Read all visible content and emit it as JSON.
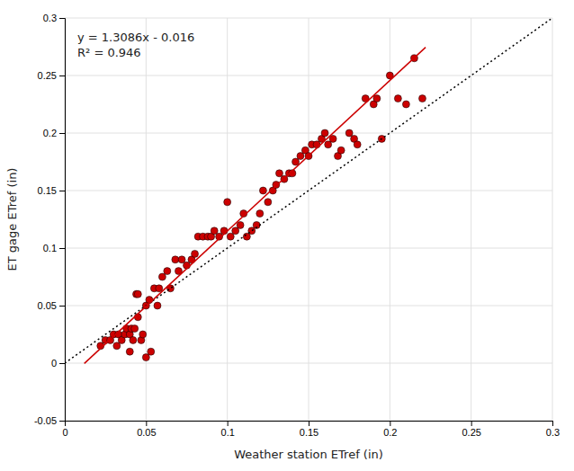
{
  "chart_data": {
    "type": "scatter",
    "xlabel": "Weather station ETref (in)",
    "ylabel": "ET gage ETref (in)",
    "xlim": [
      0,
      0.3
    ],
    "ylim": [
      -0.05,
      0.3
    ],
    "xticks": [
      0,
      0.05,
      0.1,
      0.15,
      0.2,
      0.25,
      0.3
    ],
    "yticks": [
      -0.05,
      0,
      0.05,
      0.1,
      0.15,
      0.2,
      0.25,
      0.3
    ],
    "grid": true,
    "annotations": [
      "y = 1.3086x - 0.016",
      "R² = 0.946"
    ],
    "series": [
      {
        "type": "scatter",
        "color": "#CC0000",
        "marker": "circle",
        "x": [
          0.022,
          0.025,
          0.028,
          0.03,
          0.032,
          0.033,
          0.035,
          0.037,
          0.038,
          0.04,
          0.04,
          0.041,
          0.042,
          0.043,
          0.044,
          0.045,
          0.045,
          0.047,
          0.048,
          0.05,
          0.05,
          0.052,
          0.053,
          0.055,
          0.057,
          0.058,
          0.06,
          0.063,
          0.065,
          0.068,
          0.07,
          0.072,
          0.075,
          0.078,
          0.08,
          0.082,
          0.085,
          0.088,
          0.09,
          0.092,
          0.095,
          0.098,
          0.1,
          0.102,
          0.105,
          0.108,
          0.11,
          0.112,
          0.115,
          0.118,
          0.12,
          0.122,
          0.125,
          0.128,
          0.13,
          0.132,
          0.135,
          0.138,
          0.14,
          0.142,
          0.145,
          0.148,
          0.15,
          0.152,
          0.155,
          0.158,
          0.16,
          0.162,
          0.165,
          0.168,
          0.17,
          0.175,
          0.178,
          0.18,
          0.185,
          0.19,
          0.192,
          0.195,
          0.2,
          0.205,
          0.21,
          0.215,
          0.22
        ],
        "values": [
          0.015,
          0.02,
          0.02,
          0.025,
          0.015,
          0.025,
          0.02,
          0.025,
          0.03,
          0.01,
          0.025,
          0.03,
          0.02,
          0.03,
          0.06,
          0.04,
          0.06,
          0.02,
          0.025,
          0.05,
          0.005,
          0.055,
          0.01,
          0.065,
          0.05,
          0.065,
          0.075,
          0.08,
          0.065,
          0.09,
          0.08,
          0.09,
          0.085,
          0.09,
          0.095,
          0.11,
          0.11,
          0.11,
          0.11,
          0.115,
          0.11,
          0.115,
          0.14,
          0.11,
          0.115,
          0.12,
          0.13,
          0.11,
          0.115,
          0.12,
          0.13,
          0.15,
          0.14,
          0.15,
          0.155,
          0.165,
          0.16,
          0.165,
          0.165,
          0.175,
          0.18,
          0.185,
          0.18,
          0.19,
          0.19,
          0.195,
          0.2,
          0.19,
          0.195,
          0.18,
          0.185,
          0.2,
          0.195,
          0.19,
          0.23,
          0.225,
          0.23,
          0.195,
          0.25,
          0.23,
          0.225,
          0.265,
          0.23
        ]
      },
      {
        "type": "line",
        "color": "#000000",
        "line_style": "dotted",
        "x": [
          0,
          0.3
        ],
        "values": [
          0,
          0.3
        ]
      },
      {
        "type": "line",
        "color": "#CC0000",
        "line_style": "solid",
        "x": [
          0.012,
          0.222
        ],
        "values": [
          -0.0002968,
          0.2745092
        ]
      }
    ]
  }
}
